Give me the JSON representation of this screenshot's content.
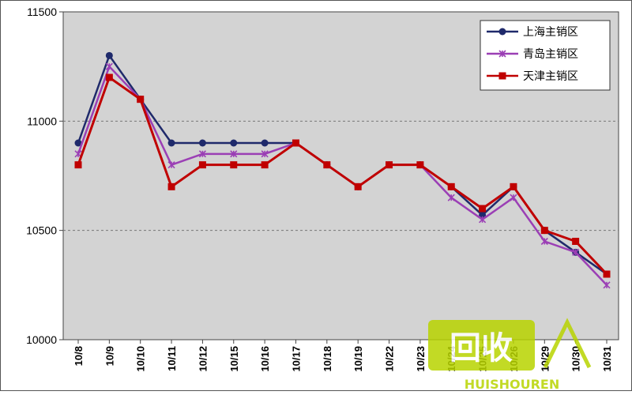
{
  "chart_data": {
    "type": "line",
    "categories": [
      "10/8",
      "10/9",
      "10/10",
      "10/11",
      "10/12",
      "10/15",
      "10/16",
      "10/17",
      "10/18",
      "10/19",
      "10/22",
      "10/23",
      "10/24",
      "10/25",
      "10/26",
      "10/29",
      "10/30",
      "10/31"
    ],
    "ylim": [
      10000,
      11500
    ],
    "yticks": [
      10000,
      10500,
      11000,
      11500
    ],
    "grid": true,
    "legend_position": "top-right",
    "series": [
      {
        "name": "上海主销区",
        "color": "#1f2a6b",
        "marker": "circle",
        "values": [
          10900,
          11300,
          11100,
          10900,
          10900,
          10900,
          10900,
          10900,
          10800,
          10700,
          10800,
          10800,
          10700,
          10570,
          10700,
          10500,
          10400,
          10300
        ]
      },
      {
        "name": "青岛主销区",
        "color": "#9b3fb5",
        "marker": "x",
        "values": [
          10850,
          11250,
          11100,
          10800,
          10850,
          10850,
          10850,
          10900,
          10800,
          10700,
          10800,
          10800,
          10650,
          10550,
          10650,
          10450,
          10400,
          10250
        ]
      },
      {
        "name": "天津主销区",
        "color": "#c00000",
        "marker": "square",
        "values": [
          10800,
          11200,
          11100,
          10700,
          10800,
          10800,
          10800,
          10900,
          10800,
          10700,
          10800,
          10800,
          10700,
          10600,
          10700,
          10500,
          10450,
          10300
        ]
      }
    ]
  },
  "watermark": {
    "logo_text": "回收",
    "sub_text": "HUISHOUREN",
    "color": "#b8d400"
  }
}
